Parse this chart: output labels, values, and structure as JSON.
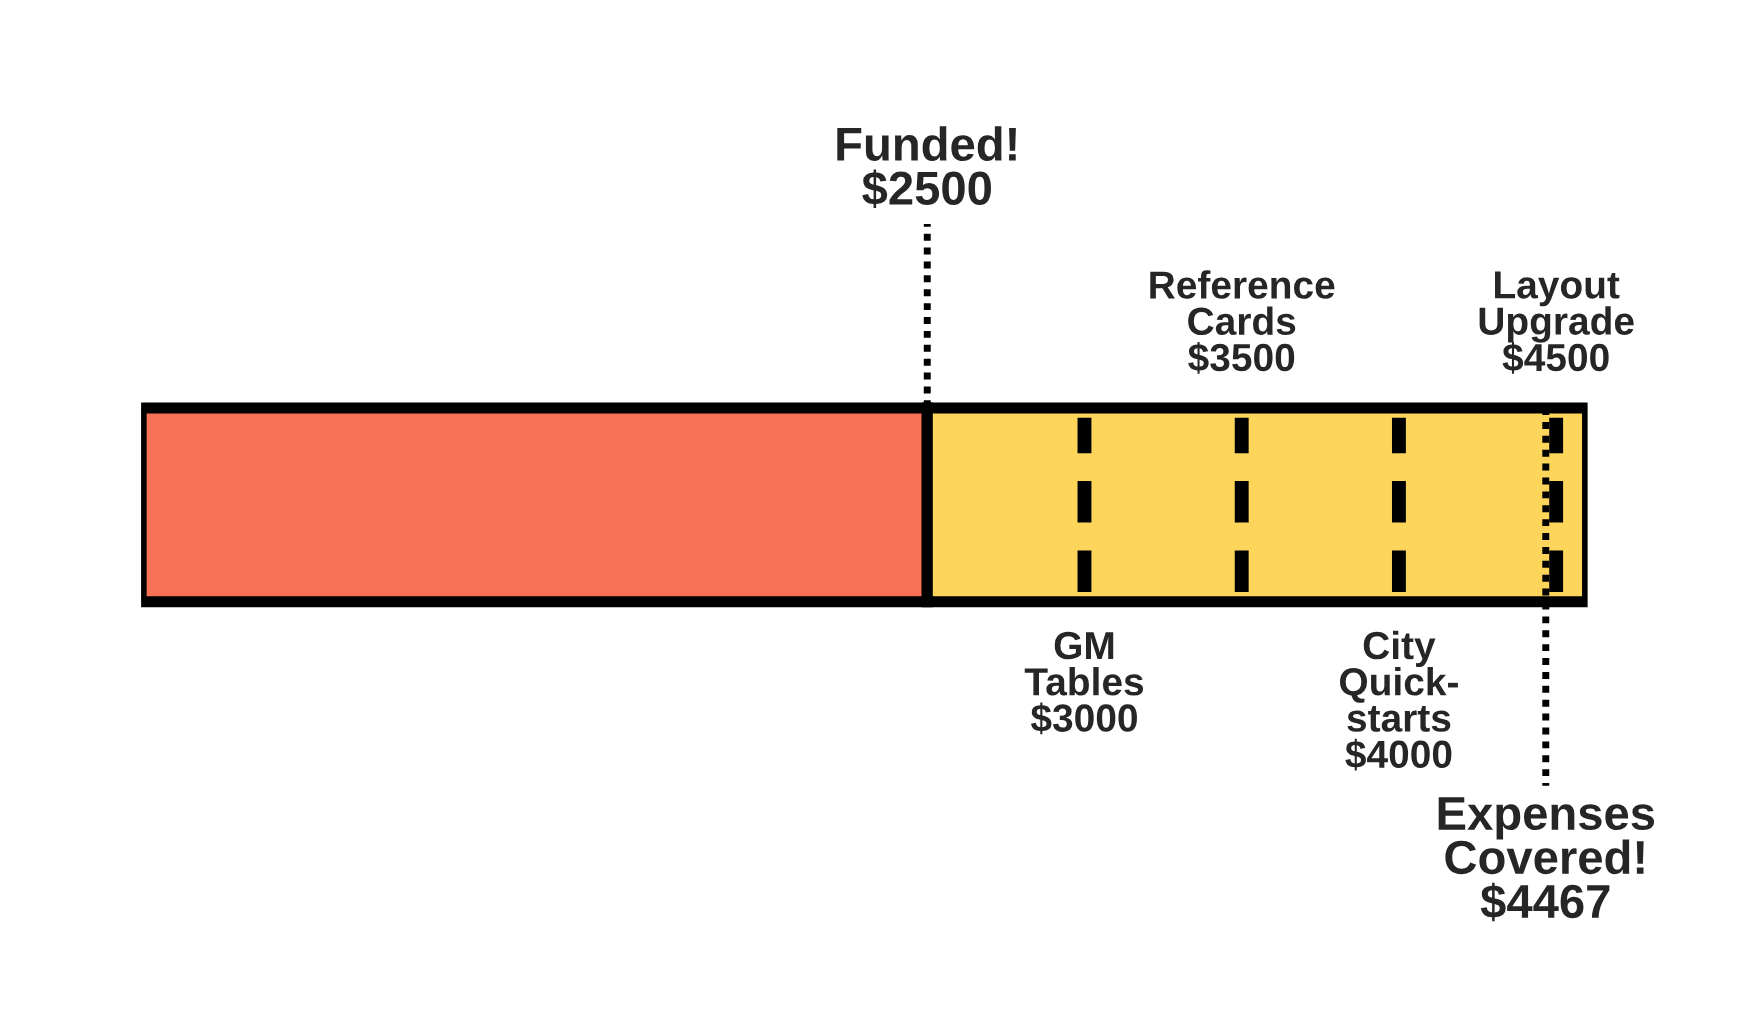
{
  "chart_data": {
    "type": "bar",
    "orientation": "horizontal",
    "stacked": true,
    "categories": [
      null
    ],
    "tick_labels": false,
    "xlim": [
      0,
      4600
    ],
    "series": [
      {
        "color": "#f87156",
        "values": [
          2500
        ]
      },
      {
        "color": "#fdd55a",
        "values": [
          2100
        ]
      }
    ],
    "ref_lines": [
      {
        "axis": "x",
        "value": 2500,
        "label": "Funded!\n$2500",
        "line_style": "dotted",
        "color": "#000000"
      },
      {
        "axis": "x",
        "value": 3000,
        "label": "GM\nTables\n$3000",
        "line_style": "dashed",
        "color": "#000000"
      },
      {
        "axis": "x",
        "value": 3500,
        "label": "Reference\nCards\n$3500",
        "line_style": "dashed",
        "color": "#000000"
      },
      {
        "axis": "x",
        "value": 4000,
        "label": "City\nQuick-\nstarts\n$4000",
        "line_style": "dashed",
        "color": "#000000"
      },
      {
        "axis": "x",
        "value": 4500,
        "label": "Layout\nUpgrade\n$4500",
        "line_style": "dashed",
        "color": "#000000"
      },
      {
        "axis": "x",
        "value": 4467,
        "label": "Expenses\nCovered!\n$4467",
        "line_style": "dotted",
        "color": "#000000"
      }
    ]
  }
}
